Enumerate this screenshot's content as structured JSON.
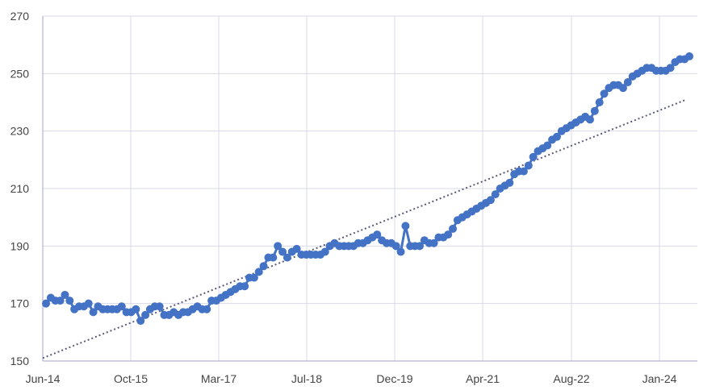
{
  "chart_data": {
    "type": "line",
    "title": "",
    "xlabel": "",
    "ylabel": "",
    "x_tick_labels": [
      "Jun-14",
      "Oct-15",
      "Mar-17",
      "Jul-18",
      "Dec-19",
      "Apr-21",
      "Aug-22",
      "Jan-24"
    ],
    "y_tick_labels": [
      "150",
      "170",
      "190",
      "210",
      "230",
      "250",
      "270"
    ],
    "ylim": [
      150,
      270
    ],
    "xlim": [
      "2014-06",
      "2024-07"
    ],
    "grid": true,
    "legend": "none",
    "colors": {
      "series": "#4472C4",
      "trendline": "#5a5a7a",
      "grid": "#d9d9e8",
      "axis": "#a6a6c8"
    },
    "series": [
      {
        "values": [
          170,
          172,
          171,
          171,
          173,
          171,
          168,
          169,
          169,
          170,
          167,
          169,
          168,
          168,
          168,
          168,
          169,
          167,
          167,
          168,
          164,
          166,
          168,
          169,
          169,
          166,
          166,
          167,
          166,
          167,
          167,
          168,
          169,
          168,
          168,
          171,
          171,
          172,
          173,
          174,
          175,
          176,
          176,
          179,
          179,
          181,
          183,
          186,
          186,
          190,
          188,
          186,
          188,
          189,
          187,
          187,
          187,
          187,
          187,
          188,
          190,
          191,
          190,
          190,
          190,
          190,
          191,
          191,
          192,
          193,
          194,
          192,
          191,
          191,
          190,
          188,
          197,
          190,
          190,
          190,
          192,
          191,
          191,
          193,
          193,
          194,
          196,
          199,
          200,
          201,
          202,
          203,
          204,
          205,
          206,
          208,
          210,
          211,
          212,
          215,
          216,
          216,
          218,
          221,
          223,
          224,
          225,
          227,
          228,
          230,
          231,
          232,
          233,
          234,
          235,
          234,
          237,
          240,
          243,
          245,
          246,
          246,
          245,
          247,
          249,
          250,
          251,
          252,
          252,
          251,
          251,
          251,
          252,
          254,
          255,
          255,
          256
        ]
      },
      {
        "type": "trendline",
        "start": {
          "x": "2014-06",
          "y": 151
        },
        "end": {
          "x": "2024-05",
          "y": 241
        }
      }
    ]
  }
}
